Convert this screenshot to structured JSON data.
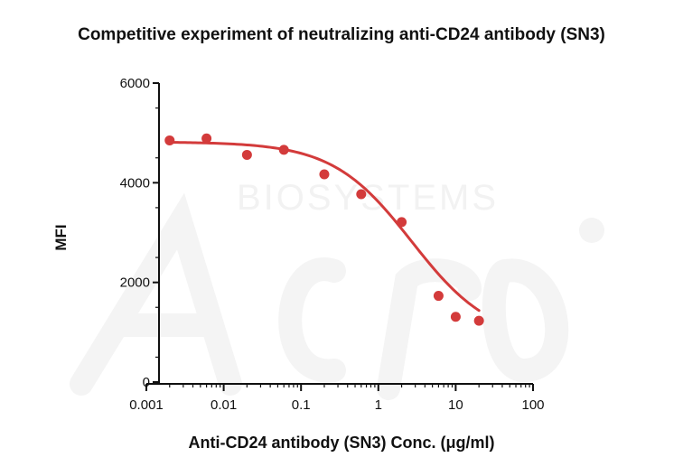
{
  "chart_data": {
    "type": "scatter",
    "title": "Competitive experiment of neutralizing anti-CD24 antibody (SN3)",
    "xlabel": "Anti-CD24 antibody (SN3) Conc. (μg/ml)",
    "ylabel": "MFI",
    "x_scale": "log",
    "xlim": [
      0.001,
      100
    ],
    "ylim": [
      0,
      6000
    ],
    "x_tick_labels": [
      "0.001",
      "0.01",
      "0.1",
      "1",
      "10",
      "100"
    ],
    "y_tick_labels": [
      "0",
      "2000",
      "4000",
      "6000"
    ],
    "grid": false,
    "legend": "none",
    "series": [
      {
        "points": [
          {
            "x": 0.002,
            "y": 4850
          },
          {
            "x": 0.006,
            "y": 4890
          },
          {
            "x": 0.02,
            "y": 4560
          },
          {
            "x": 0.06,
            "y": 4660
          },
          {
            "x": 0.2,
            "y": 4170
          },
          {
            "x": 0.6,
            "y": 3770
          },
          {
            "x": 2,
            "y": 3210
          },
          {
            "x": 6,
            "y": 1730
          },
          {
            "x": 10,
            "y": 1310
          },
          {
            "x": 20,
            "y": 1230
          }
        ],
        "fit_curve": {
          "model": "4PL",
          "top": 4820,
          "bottom": 820,
          "ec50": 2.7,
          "hill": 0.85,
          "x_range": [
            0.002,
            20
          ]
        }
      }
    ],
    "color": "#d33b3b",
    "watermark_text": "BIOSYSTEMS"
  }
}
